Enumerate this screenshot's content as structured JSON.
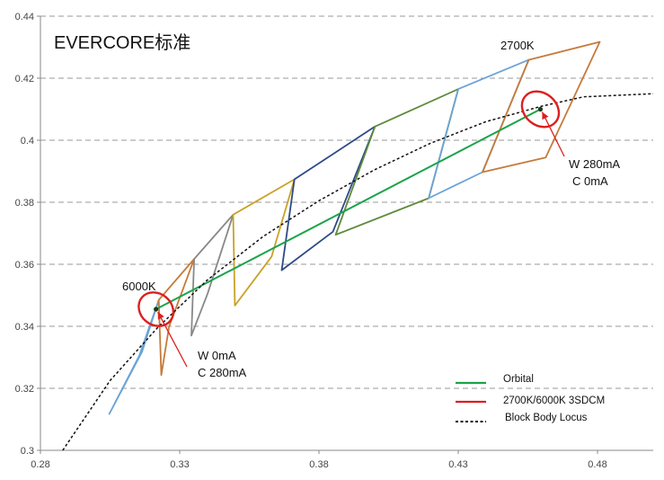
{
  "chart_data": {
    "type": "line",
    "title": "EVERCORE标准",
    "xlabel": "",
    "ylabel": "",
    "xlim": [
      0.28,
      0.5
    ],
    "ylim": [
      0.3,
      0.44
    ],
    "x_ticks": [
      "0.28",
      "0.33",
      "0.38",
      "0.43",
      "0.48"
    ],
    "x_tick_values": [
      0.28,
      0.33,
      0.38,
      0.43,
      0.48
    ],
    "y_ticks": [
      "0.3",
      "0.32",
      "0.34",
      "0.36",
      "0.38",
      "0.4",
      "0.42",
      "0.44"
    ],
    "y_tick_values": [
      0.3,
      0.32,
      0.34,
      0.36,
      0.38,
      0.4,
      0.42,
      0.44
    ],
    "grid": "horizontal-dashed",
    "legend": {
      "placement": "bottom-right",
      "entries": [
        {
          "label": "Orbital",
          "color": "#1aa34a",
          "style": "solid"
        },
        {
          "label": "2700K/6000K   3SDCM",
          "color": "#dd1f1f",
          "style": "solid"
        },
        {
          "label": "Block Body Locus",
          "color": "#111111",
          "style": "dashed"
        }
      ]
    },
    "series": [
      {
        "name": "Orbital",
        "color": "#1aa34a",
        "x": [
          0.3215,
          0.4595
        ],
        "y": [
          0.3455,
          0.41
        ]
      },
      {
        "name": "Block Body Locus",
        "color": "#111111",
        "x": [
          0.288,
          0.305,
          0.322,
          0.34,
          0.36,
          0.38,
          0.4,
          0.42,
          0.44,
          0.46,
          0.475,
          0.5
        ],
        "y": [
          0.3,
          0.3225,
          0.3395,
          0.355,
          0.369,
          0.3805,
          0.3905,
          0.399,
          0.406,
          0.411,
          0.414,
          0.415
        ]
      }
    ],
    "quadrangles": [
      {
        "color": "#6ba3d6",
        "points": [
          [
            0.3155,
            0.3305
          ],
          [
            0.3225,
            0.3485
          ],
          [
            0.3165,
            0.3318
          ],
          [
            0.3047,
            0.3117
          ]
        ]
      },
      {
        "color": "#c67a3a",
        "points": [
          [
            0.3225,
            0.3485
          ],
          [
            0.3352,
            0.3617
          ],
          [
            0.3262,
            0.3399
          ],
          [
            0.3234,
            0.3243
          ]
        ]
      },
      {
        "color": "#888888",
        "points": [
          [
            0.3352,
            0.3617
          ],
          [
            0.3492,
            0.376
          ],
          [
            0.34,
            0.3505
          ],
          [
            0.3342,
            0.337
          ]
        ]
      },
      {
        "color": "#c9a227",
        "points": [
          [
            0.3492,
            0.376
          ],
          [
            0.3712,
            0.3874
          ],
          [
            0.363,
            0.3625
          ],
          [
            0.3498,
            0.3467
          ]
        ]
      },
      {
        "color": "#2e4a86",
        "points": [
          [
            0.3712,
            0.3874
          ],
          [
            0.4001,
            0.4044
          ],
          [
            0.385,
            0.3705
          ],
          [
            0.3666,
            0.3581
          ]
        ]
      },
      {
        "color": "#5e8a3a",
        "points": [
          [
            0.4001,
            0.4044
          ],
          [
            0.43,
            0.4165
          ],
          [
            0.4194,
            0.3813
          ],
          [
            0.386,
            0.3695
          ]
        ]
      },
      {
        "color": "#6ba3d6",
        "points": [
          [
            0.43,
            0.4165
          ],
          [
            0.4553,
            0.4259
          ],
          [
            0.4387,
            0.3897
          ],
          [
            0.4194,
            0.3813
          ]
        ]
      },
      {
        "color": "#c67a3a",
        "points": [
          [
            0.4553,
            0.4259
          ],
          [
            0.4808,
            0.4317
          ],
          [
            0.4614,
            0.3944
          ],
          [
            0.4387,
            0.3897
          ]
        ]
      }
    ],
    "ellipses": [
      {
        "cx": 0.3215,
        "cy": 0.3455,
        "rx": 0.0012,
        "ry": 0.007,
        "rotate": 40,
        "color": "#dd1f1f"
      },
      {
        "cx": 0.4595,
        "cy": 0.41,
        "rx": 0.0013,
        "ry": 0.0072,
        "rotate": 40,
        "color": "#dd1f1f"
      }
    ],
    "annotations": [
      {
        "text": "6000K",
        "x": 0.3215,
        "y": 0.3455
      },
      {
        "text": "2700K",
        "x": 0.4595,
        "y": 0.41
      },
      {
        "text": "W   0mA",
        "x": 0.3215,
        "y": 0.3455
      },
      {
        "text": "C  280mA",
        "x": 0.3215,
        "y": 0.3455
      },
      {
        "text": "W  280mA",
        "x": 0.4595,
        "y": 0.41
      },
      {
        "text": "C    0mA",
        "x": 0.4595,
        "y": 0.41
      }
    ]
  }
}
